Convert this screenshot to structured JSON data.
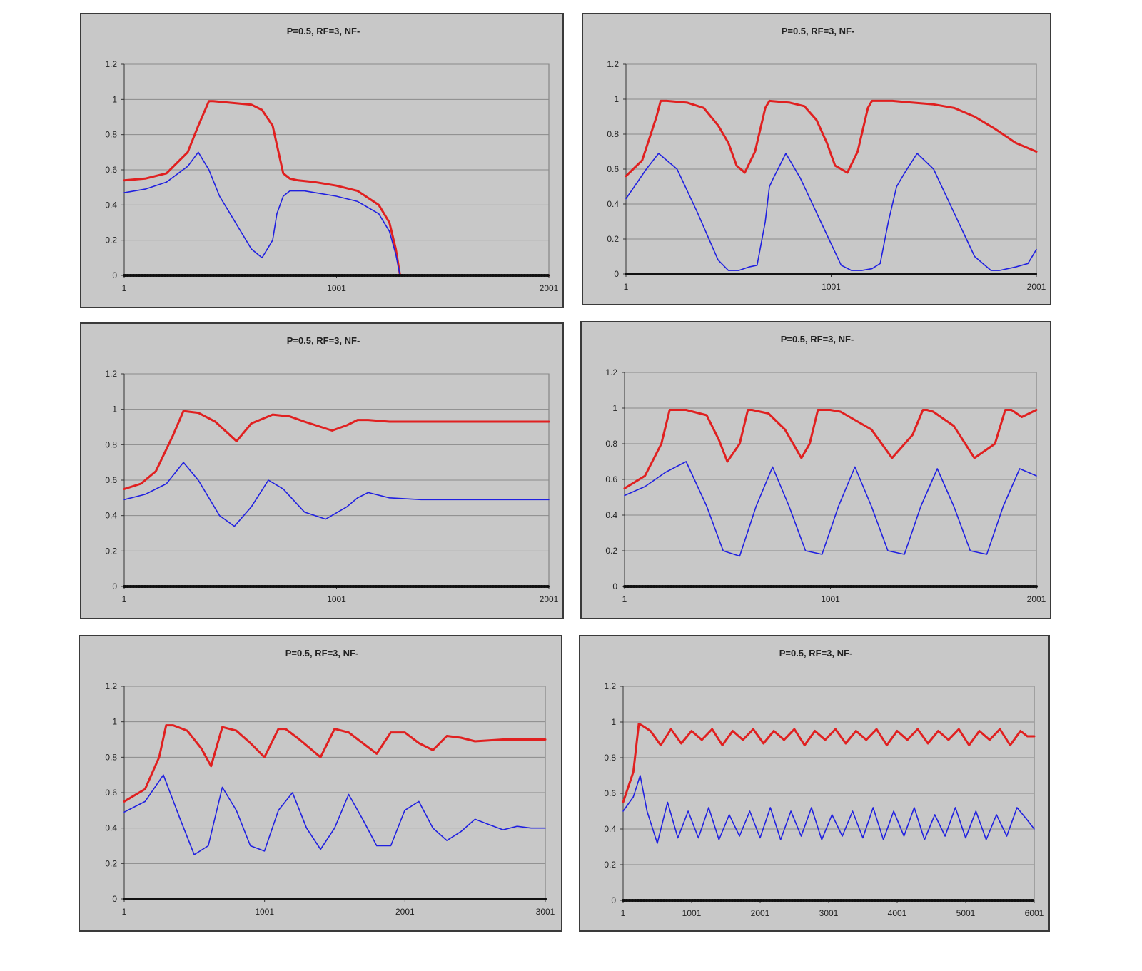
{
  "chart_data": [
    {
      "type": "line",
      "title": "P=0.5,   RF=3,   NF-",
      "ylim": [
        0,
        1.2
      ],
      "yticks": [
        "0",
        "0.2",
        "0.4",
        "0.6",
        "0.8",
        "1",
        "1.2"
      ],
      "xlim": [
        1,
        2001
      ],
      "xticks": [
        "1",
        "1001",
        "2001"
      ],
      "grid": true,
      "series": [
        {
          "color": "#e02020",
          "x": [
            1,
            100,
            200,
            300,
            350,
            400,
            420,
            600,
            650,
            700,
            750,
            781,
            820,
            900,
            1000,
            1100,
            1200,
            1250,
            1280,
            1300,
            1400,
            1600,
            1800,
            2001
          ],
          "values": [
            0.54,
            0.55,
            0.58,
            0.7,
            0.85,
            0.99,
            0.99,
            0.97,
            0.94,
            0.85,
            0.58,
            0.55,
            0.54,
            0.53,
            0.51,
            0.48,
            0.4,
            0.3,
            0.15,
            0,
            0,
            0,
            0,
            0
          ]
        },
        {
          "color": "#2020e0",
          "x": [
            1,
            100,
            200,
            300,
            350,
            400,
            450,
            500,
            550,
            600,
            650,
            700,
            720,
            750,
            781,
            850,
            900,
            1000,
            1100,
            1200,
            1250,
            1280,
            1300,
            1400,
            1600,
            1800,
            2001
          ],
          "values": [
            0.47,
            0.49,
            0.53,
            0.62,
            0.7,
            0.6,
            0.45,
            0.35,
            0.25,
            0.15,
            0.1,
            0.2,
            0.35,
            0.45,
            0.48,
            0.48,
            0.47,
            0.45,
            0.42,
            0.35,
            0.25,
            0.12,
            0,
            0,
            0,
            0,
            0
          ]
        },
        {
          "color": "#111111",
          "x": [
            1,
            2001
          ],
          "values": [
            0,
            0
          ]
        }
      ]
    },
    {
      "type": "line",
      "title": "P=0.5,   RF=3,   NF-",
      "ylim": [
        0,
        1.2
      ],
      "yticks": [
        "0",
        "0.2",
        "0.4",
        "0.6",
        "0.8",
        "1",
        "1.2"
      ],
      "xlim": [
        1,
        2001
      ],
      "xticks": [
        "1",
        "1001",
        "2001"
      ],
      "grid": true,
      "series": [
        {
          "color": "#e02020",
          "x": [
            1,
            80,
            150,
            170,
            200,
            300,
            380,
            450,
            500,
            540,
            580,
            630,
            680,
            700,
            800,
            870,
            930,
            980,
            1020,
            1080,
            1130,
            1180,
            1200,
            1300,
            1400,
            1500,
            1600,
            1700,
            1800,
            1900,
            2001
          ],
          "values": [
            0.56,
            0.65,
            0.9,
            0.99,
            0.99,
            0.98,
            0.95,
            0.85,
            0.75,
            0.62,
            0.58,
            0.7,
            0.95,
            0.99,
            0.98,
            0.96,
            0.88,
            0.75,
            0.62,
            0.58,
            0.7,
            0.95,
            0.99,
            0.99,
            0.98,
            0.97,
            0.95,
            0.9,
            0.83,
            0.75,
            0.7
          ]
        },
        {
          "color": "#2020e0",
          "x": [
            1,
            100,
            160,
            250,
            350,
            450,
            500,
            550,
            600,
            640,
            680,
            700,
            720,
            780,
            850,
            950,
            1050,
            1100,
            1150,
            1200,
            1240,
            1280,
            1320,
            1360,
            1420,
            1500,
            1600,
            1700,
            1780,
            1820,
            1900,
            1960,
            2001
          ],
          "values": [
            0.43,
            0.6,
            0.69,
            0.6,
            0.35,
            0.08,
            0.02,
            0.02,
            0.04,
            0.05,
            0.3,
            0.5,
            0.55,
            0.69,
            0.55,
            0.3,
            0.05,
            0.02,
            0.02,
            0.03,
            0.06,
            0.3,
            0.5,
            0.58,
            0.69,
            0.6,
            0.35,
            0.1,
            0.02,
            0.02,
            0.04,
            0.06,
            0.14
          ]
        },
        {
          "color": "#111111",
          "x": [
            1,
            2001
          ],
          "values": [
            0,
            0
          ]
        }
      ]
    },
    {
      "type": "line",
      "title": "P=0.5,   RF=3,   NF-",
      "ylim": [
        0,
        1.2
      ],
      "yticks": [
        "0",
        "0.2",
        "0.4",
        "0.6",
        "0.8",
        "1",
        "1.2"
      ],
      "xlim": [
        1,
        2001
      ],
      "xticks": [
        "1",
        "1001",
        "2001"
      ],
      "grid": true,
      "series": [
        {
          "color": "#e02020",
          "x": [
            1,
            80,
            150,
            230,
            280,
            350,
            430,
            530,
            600,
            700,
            780,
            850,
            980,
            1050,
            1100,
            1150,
            1250,
            1400,
            1600,
            1800,
            2001
          ],
          "values": [
            0.55,
            0.58,
            0.65,
            0.85,
            0.99,
            0.98,
            0.93,
            0.82,
            0.92,
            0.97,
            0.96,
            0.93,
            0.88,
            0.91,
            0.94,
            0.94,
            0.93,
            0.93,
            0.93,
            0.93,
            0.93
          ]
        },
        {
          "color": "#2020e0",
          "x": [
            1,
            100,
            200,
            280,
            350,
            450,
            520,
            600,
            680,
            750,
            850,
            950,
            1050,
            1100,
            1150,
            1250,
            1400,
            1600,
            1800,
            2001
          ],
          "values": [
            0.49,
            0.52,
            0.58,
            0.7,
            0.6,
            0.4,
            0.34,
            0.45,
            0.6,
            0.55,
            0.42,
            0.38,
            0.45,
            0.5,
            0.53,
            0.5,
            0.49,
            0.49,
            0.49,
            0.49
          ]
        },
        {
          "color": "#111111",
          "x": [
            1,
            2001
          ],
          "values": [
            0,
            0
          ]
        }
      ]
    },
    {
      "type": "line",
      "title": "P=0.5,   RF=3,   NF-",
      "ylim": [
        0,
        1.2
      ],
      "yticks": [
        "0",
        "0.2",
        "0.4",
        "0.6",
        "0.8",
        "1",
        "1.2"
      ],
      "xlim": [
        1,
        2001
      ],
      "xticks": [
        "1",
        "1001",
        "2001"
      ],
      "grid": true,
      "series": [
        {
          "color": "#e02020",
          "x": [
            1,
            100,
            180,
            220,
            300,
            400,
            460,
            500,
            560,
            600,
            620,
            700,
            780,
            860,
            900,
            940,
            1000,
            1050,
            1200,
            1300,
            1400,
            1450,
            1470,
            1500,
            1600,
            1700,
            1800,
            1850,
            1880,
            1930,
            2001
          ],
          "values": [
            0.55,
            0.62,
            0.8,
            0.99,
            0.99,
            0.96,
            0.82,
            0.7,
            0.8,
            0.99,
            0.99,
            0.97,
            0.88,
            0.72,
            0.8,
            0.99,
            0.99,
            0.98,
            0.88,
            0.72,
            0.85,
            0.99,
            0.99,
            0.98,
            0.9,
            0.72,
            0.8,
            0.99,
            0.99,
            0.95,
            0.99
          ]
        },
        {
          "color": "#2020e0",
          "x": [
            1,
            100,
            200,
            300,
            400,
            480,
            560,
            640,
            720,
            800,
            880,
            960,
            1040,
            1120,
            1200,
            1280,
            1360,
            1440,
            1520,
            1600,
            1680,
            1760,
            1840,
            1920,
            2001
          ],
          "values": [
            0.51,
            0.56,
            0.64,
            0.7,
            0.45,
            0.2,
            0.17,
            0.45,
            0.67,
            0.45,
            0.2,
            0.18,
            0.45,
            0.67,
            0.45,
            0.2,
            0.18,
            0.45,
            0.66,
            0.45,
            0.2,
            0.18,
            0.45,
            0.66,
            0.62
          ]
        },
        {
          "color": "#111111",
          "x": [
            1,
            2001
          ],
          "values": [
            0,
            0
          ]
        }
      ]
    },
    {
      "type": "line",
      "title": "P=0.5,   RF=3,   NF-",
      "ylim": [
        0,
        1.2
      ],
      "yticks": [
        "0",
        "0.2",
        "0.4",
        "0.6",
        "0.8",
        "1",
        "1.2"
      ],
      "xlim": [
        1,
        3001
      ],
      "xticks": [
        "1",
        "1001",
        "2001",
        "3001"
      ],
      "grid": true,
      "series": [
        {
          "color": "#e02020",
          "x": [
            1,
            150,
            250,
            300,
            350,
            450,
            550,
            620,
            700,
            800,
            900,
            1000,
            1100,
            1150,
            1250,
            1400,
            1500,
            1600,
            1700,
            1800,
            1900,
            2000,
            2100,
            2200,
            2300,
            2400,
            2500,
            2700,
            2900,
            3001
          ],
          "values": [
            0.55,
            0.62,
            0.8,
            0.98,
            0.98,
            0.95,
            0.85,
            0.75,
            0.97,
            0.95,
            0.88,
            0.8,
            0.96,
            0.96,
            0.9,
            0.8,
            0.96,
            0.94,
            0.88,
            0.82,
            0.94,
            0.94,
            0.88,
            0.84,
            0.92,
            0.91,
            0.89,
            0.9,
            0.9,
            0.9
          ]
        },
        {
          "color": "#2020e0",
          "x": [
            1,
            150,
            280,
            400,
            500,
            600,
            700,
            800,
            900,
            1000,
            1100,
            1200,
            1300,
            1400,
            1500,
            1600,
            1700,
            1800,
            1900,
            2000,
            2100,
            2200,
            2300,
            2400,
            2500,
            2600,
            2700,
            2800,
            2900,
            3001
          ],
          "values": [
            0.49,
            0.55,
            0.7,
            0.45,
            0.25,
            0.3,
            0.63,
            0.5,
            0.3,
            0.27,
            0.5,
            0.6,
            0.4,
            0.28,
            0.4,
            0.59,
            0.45,
            0.3,
            0.3,
            0.5,
            0.55,
            0.4,
            0.33,
            0.38,
            0.45,
            0.42,
            0.39,
            0.41,
            0.4,
            0.4
          ]
        },
        {
          "color": "#111111",
          "x": [
            1,
            3001
          ],
          "values": [
            0,
            0
          ]
        }
      ]
    },
    {
      "type": "line",
      "title": "P=0.5,   RF=3,   NF-",
      "ylim": [
        0,
        1.2
      ],
      "yticks": [
        "0",
        "0.2",
        "0.4",
        "0.6",
        "0.8",
        "1",
        "1.2"
      ],
      "xlim": [
        1,
        6001
      ],
      "xticks": [
        "1",
        "1001",
        "2001",
        "3001",
        "4001",
        "5001",
        "6001"
      ],
      "grid": true,
      "series": [
        {
          "color": "#e02020",
          "x": [
            1,
            150,
            230,
            280,
            400,
            550,
            700,
            850,
            1000,
            1150,
            1300,
            1450,
            1600,
            1750,
            1900,
            2050,
            2200,
            2350,
            2500,
            2650,
            2800,
            2950,
            3100,
            3250,
            3400,
            3550,
            3700,
            3850,
            4000,
            4150,
            4300,
            4450,
            4600,
            4750,
            4900,
            5050,
            5200,
            5350,
            5500,
            5650,
            5800,
            5900,
            6001
          ],
          "values": [
            0.55,
            0.72,
            0.99,
            0.98,
            0.95,
            0.87,
            0.96,
            0.88,
            0.95,
            0.9,
            0.96,
            0.87,
            0.95,
            0.9,
            0.96,
            0.88,
            0.95,
            0.9,
            0.96,
            0.87,
            0.95,
            0.9,
            0.96,
            0.88,
            0.95,
            0.9,
            0.96,
            0.87,
            0.95,
            0.9,
            0.96,
            0.88,
            0.95,
            0.9,
            0.96,
            0.87,
            0.95,
            0.9,
            0.96,
            0.87,
            0.95,
            0.92,
            0.92
          ]
        },
        {
          "color": "#2020e0",
          "x": [
            1,
            150,
            250,
            350,
            500,
            650,
            800,
            950,
            1100,
            1250,
            1400,
            1550,
            1700,
            1850,
            2000,
            2150,
            2300,
            2450,
            2600,
            2750,
            2900,
            3050,
            3200,
            3350,
            3500,
            3650,
            3800,
            3950,
            4100,
            4250,
            4400,
            4550,
            4700,
            4850,
            5000,
            5150,
            5300,
            5450,
            5600,
            5750,
            5900,
            6001
          ],
          "values": [
            0.5,
            0.58,
            0.7,
            0.5,
            0.32,
            0.55,
            0.35,
            0.5,
            0.35,
            0.52,
            0.34,
            0.48,
            0.36,
            0.5,
            0.35,
            0.52,
            0.34,
            0.5,
            0.36,
            0.52,
            0.34,
            0.48,
            0.36,
            0.5,
            0.35,
            0.52,
            0.34,
            0.5,
            0.36,
            0.52,
            0.34,
            0.48,
            0.36,
            0.52,
            0.35,
            0.5,
            0.34,
            0.48,
            0.36,
            0.52,
            0.45,
            0.4
          ]
        },
        {
          "color": "#111111",
          "x": [
            1,
            6001
          ],
          "values": [
            0,
            0
          ]
        }
      ]
    }
  ]
}
